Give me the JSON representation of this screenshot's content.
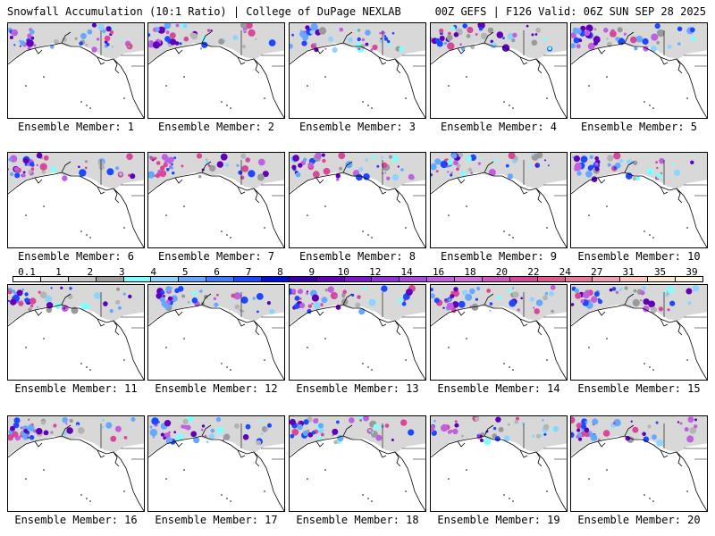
{
  "header": {
    "left": "Snowfall Accumulation (10:1 Ratio) | College of DuPage NEXLAB",
    "right": "00Z GEFS | F126 Valid: 06Z SUN SEP 28 2025"
  },
  "panels": [
    {
      "label": "Ensemble Member: 1"
    },
    {
      "label": "Ensemble Member: 2"
    },
    {
      "label": "Ensemble Member: 3"
    },
    {
      "label": "Ensemble Member: 4"
    },
    {
      "label": "Ensemble Member: 5"
    },
    {
      "label": "Ensemble Member: 6"
    },
    {
      "label": "Ensemble Member: 7"
    },
    {
      "label": "Ensemble Member: 8"
    },
    {
      "label": "Ensemble Member: 9"
    },
    {
      "label": "Ensemble Member: 10"
    },
    {
      "label": "Ensemble Member: 11"
    },
    {
      "label": "Ensemble Member: 12"
    },
    {
      "label": "Ensemble Member: 13"
    },
    {
      "label": "Ensemble Member: 14"
    },
    {
      "label": "Ensemble Member: 15"
    },
    {
      "label": "Ensemble Member: 16"
    },
    {
      "label": "Ensemble Member: 17"
    },
    {
      "label": "Ensemble Member: 18"
    },
    {
      "label": "Ensemble Member: 19"
    },
    {
      "label": "Ensemble Member: 20"
    }
  ],
  "color_scale": {
    "ticks": [
      "0.1",
      "1",
      "2",
      "3",
      "4",
      "5",
      "6",
      "7",
      "8",
      "9",
      "10",
      "12",
      "14",
      "16",
      "18",
      "20",
      "22",
      "24",
      "27",
      "31",
      "35",
      "39"
    ],
    "colors": [
      "#ffffff",
      "#e6e6e6",
      "#c8c8c8",
      "#a0a0a0",
      "#7fffff",
      "#8fd4ff",
      "#66a8ff",
      "#3c7cff",
      "#1c48ff",
      "#0010d8",
      "#3a00a8",
      "#6000b8",
      "#7a18c8",
      "#9032d4",
      "#a848dc",
      "#c060e0",
      "#d070d8",
      "#d058b8",
      "#d84898",
      "#e05888",
      "#e87898",
      "#f0a0b0",
      "#f8c8c0",
      "#fde8d0",
      "#fff6e6"
    ]
  }
}
